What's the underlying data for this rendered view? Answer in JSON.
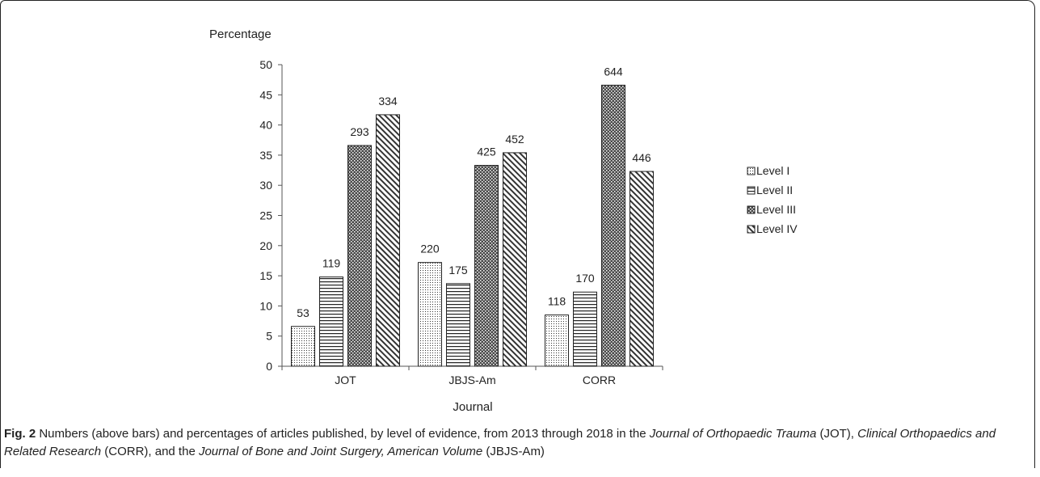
{
  "chart_data": {
    "type": "bar",
    "ylabel": "Percentage",
    "xlabel": "Journal",
    "ylim": [
      0,
      50
    ],
    "yticks": [
      0,
      5,
      10,
      15,
      20,
      25,
      30,
      35,
      40,
      45,
      50
    ],
    "categories": [
      "JOT",
      "JBJS-Am",
      "CORR"
    ],
    "series": [
      {
        "name": "Level I",
        "values": [
          6.6,
          17.2,
          8.5
        ],
        "labels": [
          "53",
          "220",
          "118"
        ],
        "pattern": "dots"
      },
      {
        "name": "Level II",
        "values": [
          14.8,
          13.7,
          12.3
        ],
        "labels": [
          "119",
          "175",
          "170"
        ],
        "pattern": "hlines"
      },
      {
        "name": "Level III",
        "values": [
          36.6,
          33.3,
          46.6
        ],
        "labels": [
          "293",
          "425",
          "644"
        ],
        "pattern": "crosshatch"
      },
      {
        "name": "Level IV",
        "values": [
          41.7,
          35.4,
          32.3
        ],
        "labels": [
          "334",
          "452",
          "446"
        ],
        "pattern": "diagonal"
      }
    ],
    "legend_position": "right",
    "grid": false
  },
  "caption": {
    "fig_label": "Fig. 2",
    "t1": " Numbers (above bars) and percentages of articles published, by level of evidence, from 2013 through 2018 in the ",
    "i1": "Journal of Orthopaedic Trauma",
    "t2": " (JOT), ",
    "i2": "Clinical Orthopaedics and Related Research",
    "t3": " (CORR), and the ",
    "i3": "Journal of Bone and Joint Surgery, American Volume",
    "t4": " (JBJS-Am)"
  }
}
